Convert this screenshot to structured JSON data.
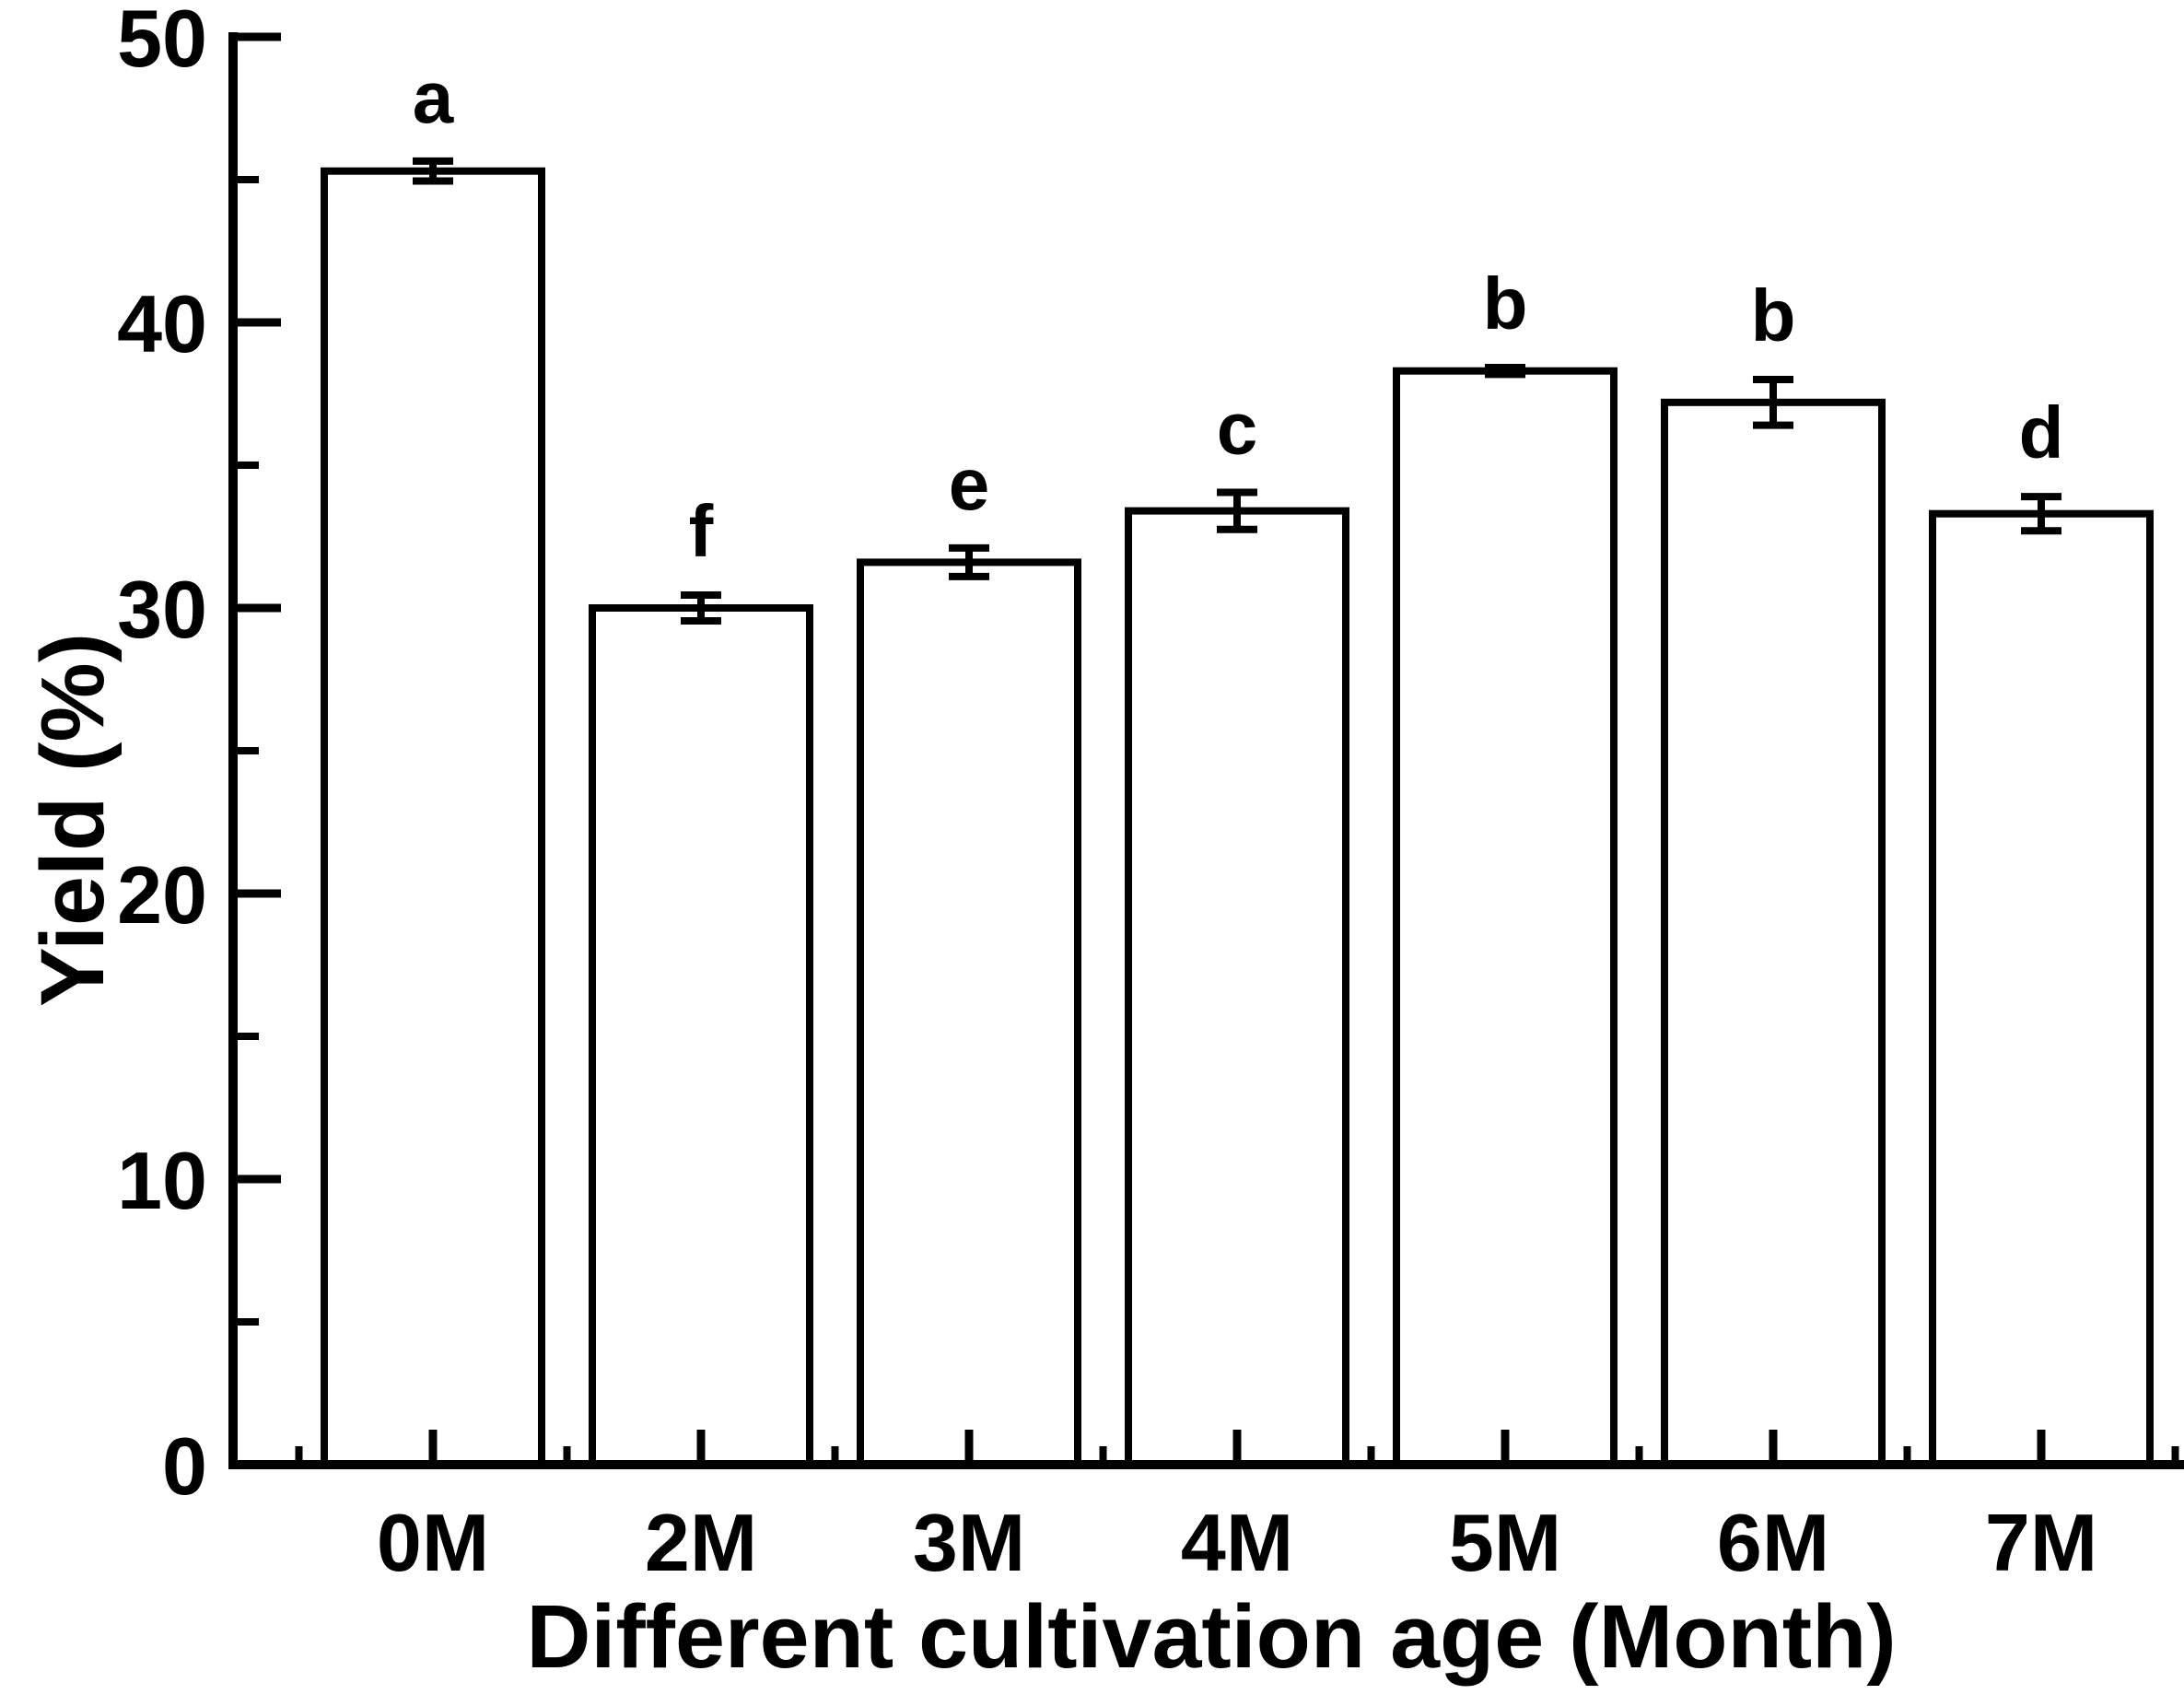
{
  "figure": {
    "background": "#ffffff",
    "ink": "#000000"
  },
  "chart_data": {
    "type": "bar",
    "title": "",
    "xlabel": "Different cultivation age (Month)",
    "ylabel": "Yield (%)",
    "categories": [
      "0M",
      "2M",
      "3M",
      "4M",
      "5M",
      "6M",
      "7M"
    ],
    "values": [
      45.3,
      30.0,
      31.6,
      33.4,
      38.3,
      37.2,
      33.3
    ],
    "errors": [
      0.35,
      0.45,
      0.5,
      0.65,
      0.12,
      0.8,
      0.6
    ],
    "sig_letters": [
      "a",
      "f",
      "e",
      "c",
      "b",
      "b",
      "d"
    ],
    "ylim": [
      0,
      50
    ],
    "yticks": [
      0,
      10,
      20,
      30,
      40,
      50
    ],
    "ytick_minor_step": 5,
    "grid": "off",
    "legend": "none",
    "bar_fill": "#ffffff",
    "bar_stroke": "#000000",
    "error_bar_style": "capped"
  }
}
